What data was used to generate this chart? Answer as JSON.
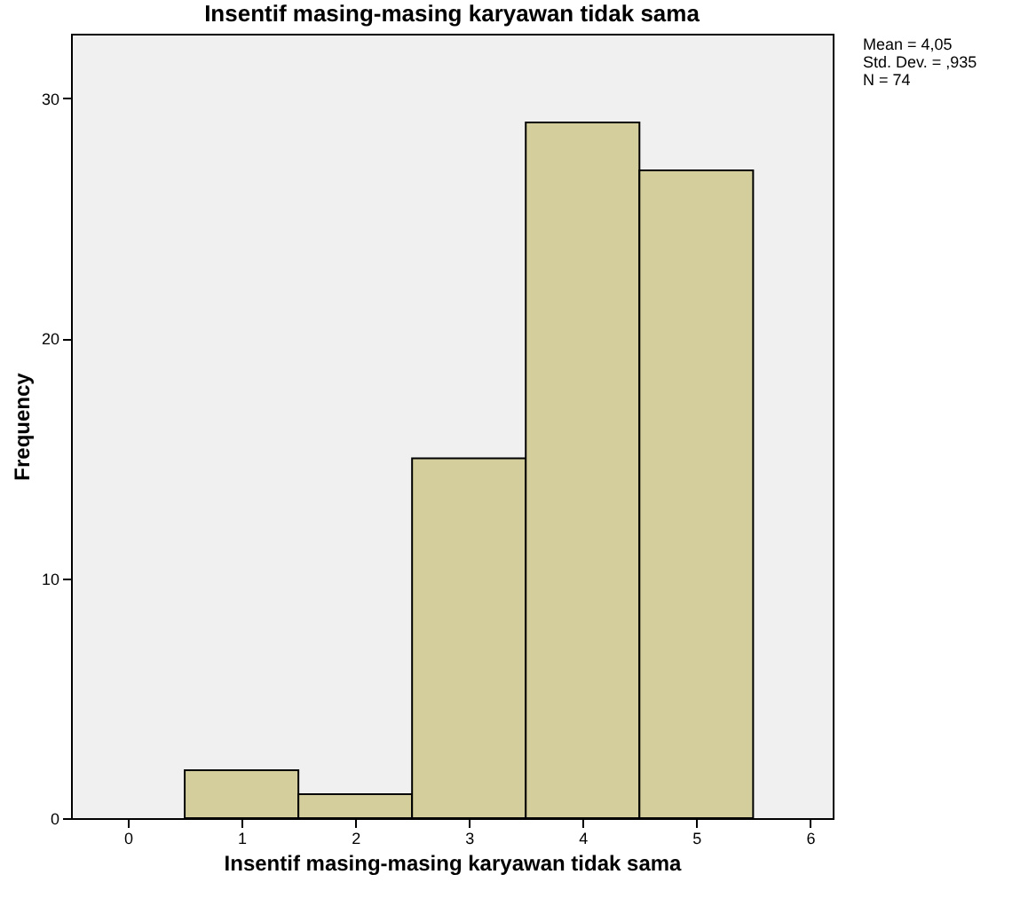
{
  "chart_data": {
    "type": "histogram",
    "title": "Insentif masing-masing karyawan tidak sama",
    "xlabel": "Insentif masing-masing karyawan tidak sama",
    "ylabel": "Frequency",
    "bins": [
      0.5,
      1.5,
      2.5,
      3.5,
      4.5,
      5.5
    ],
    "values": [
      2,
      1,
      15,
      29,
      27
    ],
    "color": "#d3ce9b",
    "xlim": [
      -0.5,
      6.2
    ],
    "xticks": [
      0,
      1,
      2,
      3,
      4,
      5,
      6
    ],
    "ylim": [
      0,
      32.7
    ],
    "yticks": [
      0,
      10,
      20,
      30
    ],
    "grid": false,
    "annotations": [
      "Mean = 4,05",
      "Std. Dev. = ,935",
      "N = 74"
    ]
  }
}
